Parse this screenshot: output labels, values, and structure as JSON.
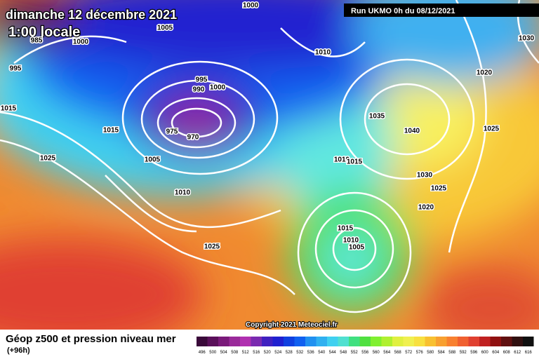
{
  "header": {
    "date": "dimanche 12 décembre 2021",
    "time": "1:00 locale",
    "run": "Run UKMO 0h du 08/12/2021"
  },
  "isobar_labels": [
    1000,
    1005,
    1000,
    985,
    995,
    1010,
    1030,
    1020,
    995,
    990,
    1000,
    975,
    970,
    1015,
    1015,
    1035,
    1040,
    1025,
    1025,
    1005,
    1010,
    1015,
    1030,
    1025,
    1010,
    1020,
    1025,
    1015,
    1010,
    1005
  ],
  "copyright": "Copyright 2021 Meteociel.fr",
  "footer": {
    "title": "Géop z500 et pression niveau mer",
    "lead": "(+96h)"
  },
  "scale": {
    "values": [
      496,
      500,
      504,
      508,
      512,
      516,
      520,
      524,
      528,
      532,
      536,
      540,
      544,
      548,
      552,
      556,
      560,
      564,
      568,
      572,
      576,
      580,
      584,
      588,
      592,
      596,
      600,
      604,
      608,
      612,
      616
    ],
    "colors": [
      "#3a0a3a",
      "#5a105a",
      "#7a1a7a",
      "#9a2a9a",
      "#b030b0",
      "#7a2ab0",
      "#4020c0",
      "#2020d0",
      "#1040e0",
      "#1060f0",
      "#2090f0",
      "#30b0f0",
      "#40d0f0",
      "#50e0d0",
      "#40e080",
      "#50e040",
      "#80f030",
      "#b0f030",
      "#e0f040",
      "#f0f050",
      "#f8e040",
      "#f8c030",
      "#f8a030",
      "#f88030",
      "#f06030",
      "#e04030",
      "#c02020",
      "#901010",
      "#601010",
      "#301010",
      "#101010"
    ]
  }
}
